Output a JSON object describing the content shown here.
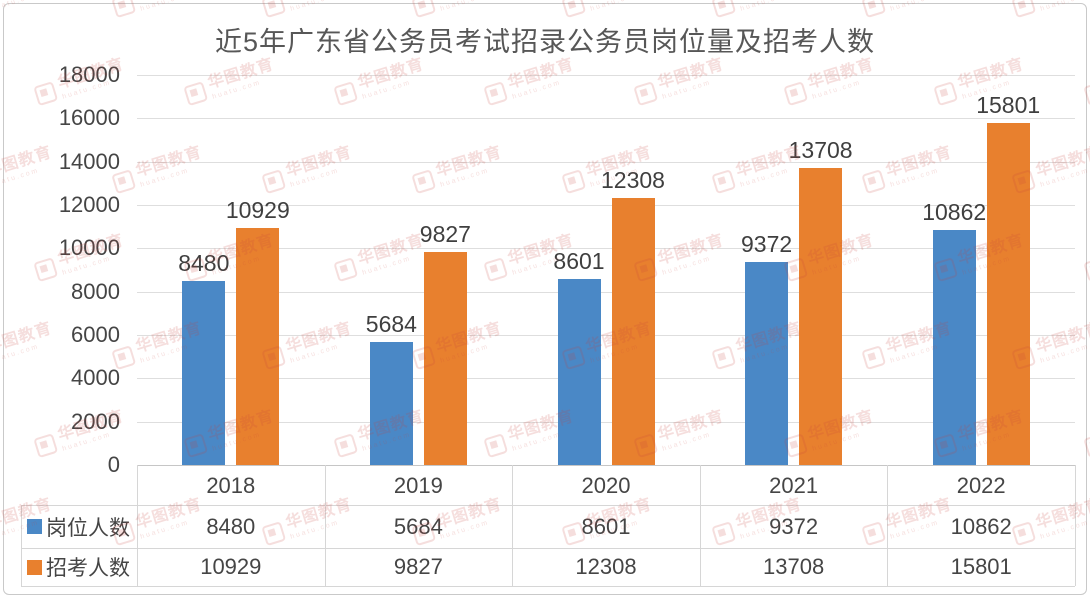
{
  "title": "近5年广东省公务员考试招录公务员岗位量及招考人数",
  "watermark": {
    "text": "华图教育",
    "subtext": "huatu.com",
    "logo": "huatu-logo-icon",
    "color": "#c9423b"
  },
  "chart_data": {
    "type": "bar",
    "title": "近5年广东省公务员考试招录公务员岗位量及招考人数",
    "categories": [
      "2018",
      "2019",
      "2020",
      "2021",
      "2022"
    ],
    "series": [
      {
        "name": "岗位人数",
        "color": "#4a88c6",
        "values": [
          8480,
          5684,
          8601,
          9372,
          10862
        ]
      },
      {
        "name": "招考人数",
        "color": "#e8802e",
        "values": [
          10929,
          9827,
          12308,
          13708,
          15801
        ]
      }
    ],
    "ylim": [
      0,
      18000
    ],
    "yticks": [
      0,
      2000,
      4000,
      6000,
      8000,
      10000,
      12000,
      14000,
      16000,
      18000
    ],
    "grid": true,
    "data_labels": true,
    "legend_position": "table-left"
  },
  "table": {
    "header_row": [
      "2018",
      "2019",
      "2020",
      "2021",
      "2022"
    ],
    "rows": [
      {
        "label": "岗位人数",
        "swatch_color": "#4a88c6",
        "values": [
          "8480",
          "5684",
          "8601",
          "9372",
          "10862"
        ]
      },
      {
        "label": "招考人数",
        "swatch_color": "#e8802e",
        "values": [
          "10929",
          "9827",
          "12308",
          "13708",
          "15801"
        ]
      }
    ]
  }
}
